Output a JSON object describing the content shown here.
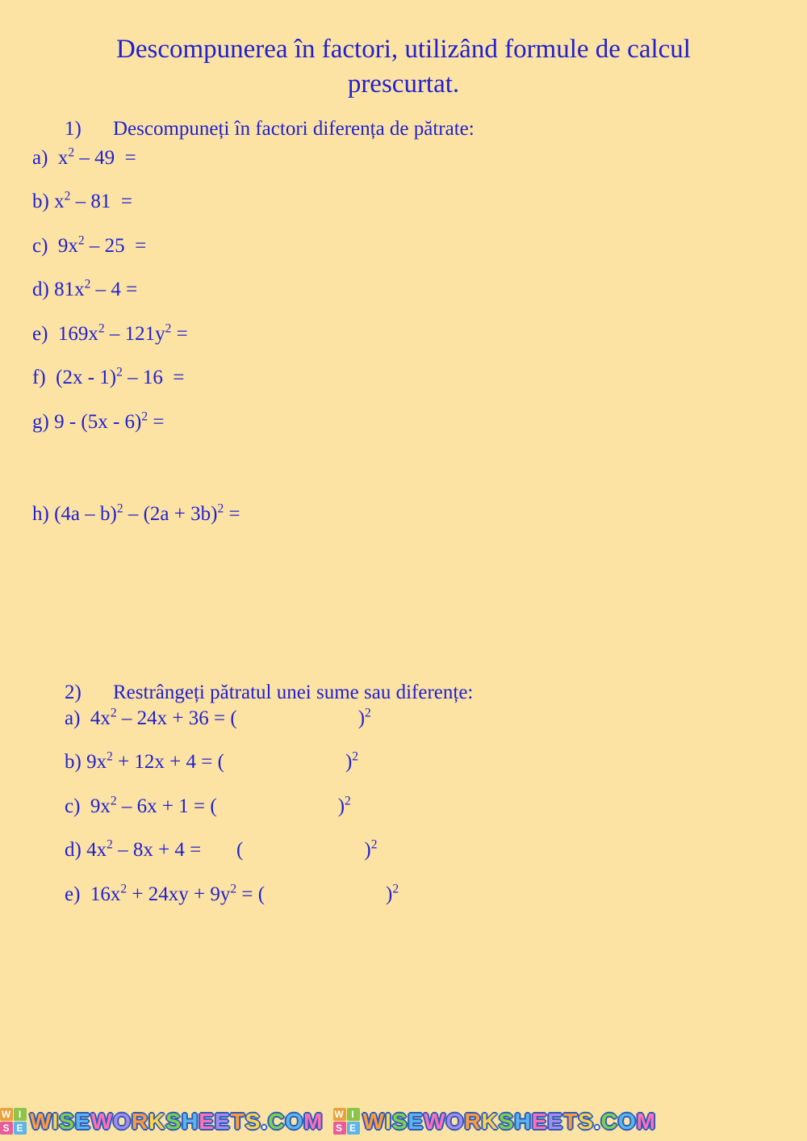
{
  "colors": {
    "background": "#fce3a3",
    "text": "#2020d0",
    "watermark_outline": "#2a5bbf"
  },
  "typography": {
    "family": "Times New Roman",
    "title_fontsize": 33,
    "body_fontsize": 25
  },
  "title": "Descompunerea în factori, utilizând formule de calcul prescurtat.",
  "section1": {
    "number": "1)",
    "prompt": "Descompuneți în factori diferența de pătrate:",
    "items": {
      "a": "a)  x² – 49  =",
      "b": "b) x² – 81  =",
      "c": "c)  9x² – 25  =",
      "d": "d) 81x² – 4 =",
      "e": "e)  169x² – 121y² =",
      "f": "f)  (2x - 1)² – 16  =",
      "g": "g) 9 - (5x - 6)² =",
      "h": "h) (4a – b)² – (2a + 3b)² ="
    }
  },
  "section2": {
    "number": "2)",
    "prompt": "Restrângeți pătratul unei sume sau  diferențe:",
    "items": {
      "a": "a)  4x² – 24x + 36 = (                        )²",
      "b": "b) 9x² + 12x + 4 = (                        )²",
      "c": "c)  9x² – 6x + 1 = (                        )²",
      "d": "d) 4x² – 8x + 4 =       (                        )²",
      "e": "e)  16x² + 24xy + 9y² = (                        )²"
    }
  },
  "watermark": {
    "logo_letters": [
      "W",
      "I",
      "S",
      "E"
    ],
    "text": "WISEWORKSHEETS.COM"
  }
}
